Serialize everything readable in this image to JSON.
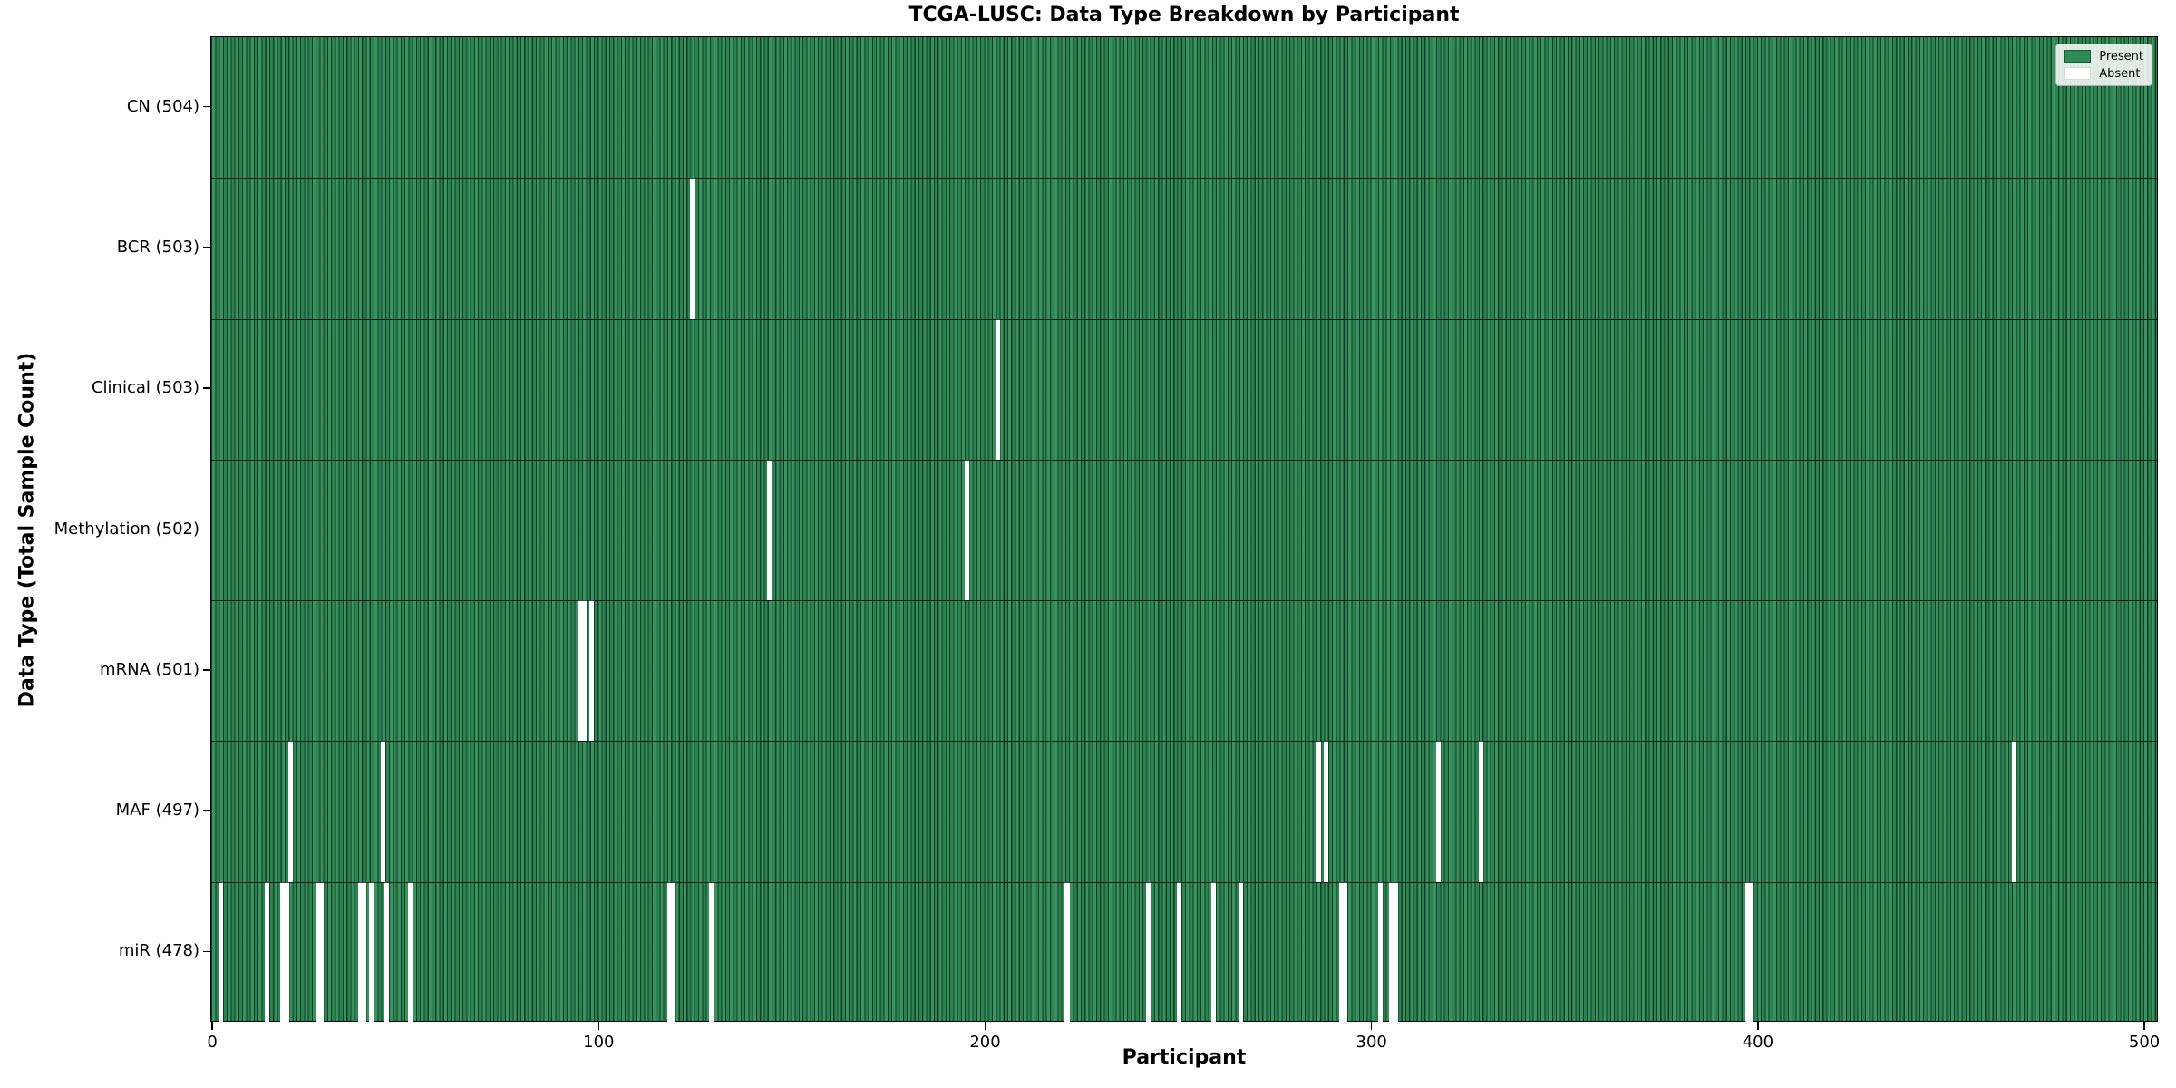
{
  "chart_data": {
    "type": "heatmap",
    "title": "TCGA-LUSC: Data Type Breakdown by Participant",
    "xlabel": "Participant",
    "ylabel": "Data Type (Total Sample Count)",
    "legend_entries": [
      "Present",
      "Absent"
    ],
    "present_color": "#2e8b57",
    "present_edge_color": "rgba(10,42,25,0.8)",
    "absent_color": "#ffffff",
    "total_participants": 504,
    "x_ticks": [
      0,
      100,
      200,
      300,
      400,
      500
    ],
    "xlim": [
      -0.5,
      503.5
    ],
    "grid": false,
    "legend_position": "upper right",
    "rows": [
      {
        "label": "CN (504)",
        "name": "cn",
        "total": 504,
        "absent": []
      },
      {
        "label": "BCR (503)",
        "name": "bcr",
        "total": 503,
        "absent": [
          124
        ]
      },
      {
        "label": "Clinical (503)",
        "name": "clinical",
        "total": 503,
        "absent": [
          203
        ]
      },
      {
        "label": "Methylation (502)",
        "name": "methylation",
        "total": 502,
        "absent": [
          144,
          195
        ]
      },
      {
        "label": "mRNA (501)",
        "name": "mrna",
        "total": 501,
        "absent": [
          95,
          96,
          98
        ]
      },
      {
        "label": "MAF (497)",
        "name": "maf",
        "total": 497,
        "absent": [
          20,
          44,
          286,
          288,
          317,
          328,
          466
        ]
      },
      {
        "label": "miR (478)",
        "name": "mir",
        "total": 478,
        "absent": [
          2,
          14,
          18,
          19,
          27,
          28,
          38,
          39,
          41,
          45,
          51,
          118,
          119,
          129,
          221,
          242,
          250,
          259,
          266,
          292,
          293,
          302,
          305,
          306,
          397,
          398
        ]
      }
    ]
  }
}
